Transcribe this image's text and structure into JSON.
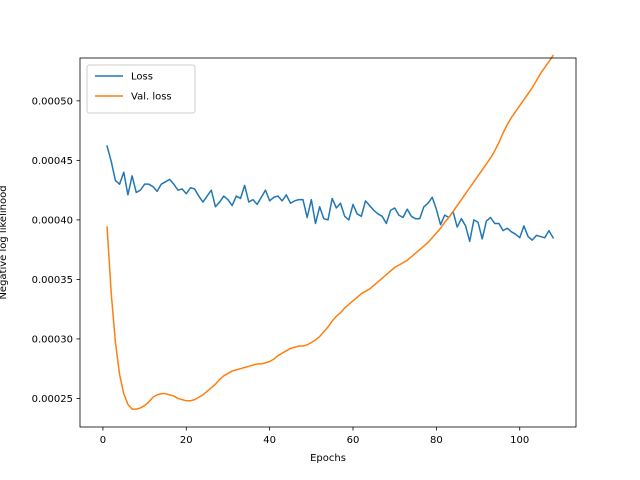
{
  "chart_data": {
    "type": "line",
    "title": "",
    "xlabel": "Epochs",
    "ylabel": "Negative log likelihood",
    "xlim": [
      -5.5,
      113.5
    ],
    "ylim": [
      0.000226,
      0.000536
    ],
    "xticks": [
      0,
      20,
      40,
      60,
      80,
      100
    ],
    "xtick_labels": [
      "0",
      "20",
      "40",
      "60",
      "80",
      "100"
    ],
    "yticks": [
      0.00025,
      0.0003,
      0.00035,
      0.0004,
      0.00045,
      0.0005
    ],
    "ytick_labels": [
      "0.00025",
      "0.00030",
      "0.00035",
      "0.00040",
      "0.00045",
      "0.00050"
    ],
    "grid": false,
    "legend_position": "top-left",
    "series": [
      {
        "name": "Loss",
        "color": "#1f77b4",
        "x": [
          1,
          2,
          3,
          4,
          5,
          6,
          7,
          8,
          9,
          10,
          11,
          12,
          13,
          14,
          15,
          16,
          17,
          18,
          19,
          20,
          21,
          22,
          23,
          24,
          25,
          26,
          27,
          28,
          29,
          30,
          31,
          32,
          33,
          34,
          35,
          36,
          37,
          38,
          39,
          40,
          41,
          42,
          43,
          44,
          45,
          46,
          47,
          48,
          49,
          50,
          51,
          52,
          53,
          54,
          55,
          56,
          57,
          58,
          59,
          60,
          61,
          62,
          63,
          64,
          65,
          66,
          67,
          68,
          69,
          70,
          71,
          72,
          73,
          74,
          75,
          76,
          77,
          78,
          79,
          80,
          81,
          82,
          83,
          84,
          85,
          86,
          87,
          88,
          89,
          90,
          91,
          92,
          93,
          94,
          95,
          96,
          97,
          98,
          99,
          100,
          101,
          102,
          103,
          104,
          105,
          106,
          107,
          108
        ],
        "values": [
          0.000462,
          0.000449,
          0.000433,
          0.00043,
          0.00044,
          0.000421,
          0.000437,
          0.000423,
          0.000425,
          0.00043,
          0.00043,
          0.000428,
          0.000424,
          0.00043,
          0.000432,
          0.000434,
          0.00043,
          0.000425,
          0.000426,
          0.000422,
          0.000427,
          0.000426,
          0.00042,
          0.000415,
          0.00042,
          0.000425,
          0.000411,
          0.000415,
          0.00042,
          0.000417,
          0.000412,
          0.00042,
          0.000418,
          0.000429,
          0.000415,
          0.000417,
          0.000413,
          0.000419,
          0.000425,
          0.000416,
          0.000419,
          0.00042,
          0.000416,
          0.000421,
          0.000414,
          0.000416,
          0.000417,
          0.000417,
          0.000402,
          0.000417,
          0.000397,
          0.000411,
          0.000401,
          0.0004,
          0.000418,
          0.00041,
          0.000414,
          0.000403,
          0.0004,
          0.000413,
          0.000405,
          0.000403,
          0.000416,
          0.000412,
          0.000408,
          0.000405,
          0.000403,
          0.000397,
          0.000408,
          0.00041,
          0.000404,
          0.000402,
          0.000409,
          0.000403,
          0.000401,
          0.000401,
          0.000411,
          0.000414,
          0.000419,
          0.000409,
          0.000396,
          0.000404,
          0.000402,
          0.000407,
          0.000394,
          0.000401,
          0.000395,
          0.000382,
          0.0004,
          0.000398,
          0.000384,
          0.000399,
          0.000402,
          0.000397,
          0.000397,
          0.000391,
          0.000393,
          0.00039,
          0.000388,
          0.000385,
          0.000395,
          0.000386,
          0.000383,
          0.000387,
          0.000386,
          0.000385,
          0.000391,
          0.000385
        ]
      },
      {
        "name": "Val. loss",
        "color": "#ff7f0e",
        "x": [
          1,
          2,
          3,
          4,
          5,
          6,
          7,
          8,
          9,
          10,
          11,
          12,
          13,
          14,
          15,
          16,
          17,
          18,
          19,
          20,
          21,
          22,
          23,
          24,
          25,
          26,
          27,
          28,
          29,
          30,
          31,
          32,
          33,
          34,
          35,
          36,
          37,
          38,
          39,
          40,
          41,
          42,
          43,
          44,
          45,
          46,
          47,
          48,
          49,
          50,
          51,
          52,
          53,
          54,
          55,
          56,
          57,
          58,
          59,
          60,
          61,
          62,
          63,
          64,
          65,
          66,
          67,
          68,
          69,
          70,
          71,
          72,
          73,
          74,
          75,
          76,
          77,
          78,
          79,
          80,
          81,
          82,
          83,
          84,
          85,
          86,
          87,
          88,
          89,
          90,
          91,
          92,
          93,
          94,
          95,
          96,
          97,
          98,
          99,
          100,
          101,
          102,
          103,
          104,
          105,
          106,
          107,
          108
        ],
        "values": [
          0.000394,
          0.000338,
          0.000297,
          0.00027,
          0.000254,
          0.000245,
          0.000241,
          0.000241,
          0.000242,
          0.000244,
          0.000247,
          0.000251,
          0.000253,
          0.000254,
          0.000254,
          0.000253,
          0.000252,
          0.00025,
          0.000249,
          0.000248,
          0.000248,
          0.000249,
          0.000251,
          0.000253,
          0.000256,
          0.000259,
          0.000262,
          0.000266,
          0.000269,
          0.000271,
          0.000273,
          0.000274,
          0.000275,
          0.000276,
          0.000277,
          0.000278,
          0.000279,
          0.000279,
          0.00028,
          0.000281,
          0.000283,
          0.000286,
          0.000288,
          0.00029,
          0.000292,
          0.000293,
          0.000294,
          0.000294,
          0.000295,
          0.000297,
          0.000299,
          0.000302,
          0.000306,
          0.00031,
          0.000315,
          0.000319,
          0.000322,
          0.000326,
          0.000329,
          0.000332,
          0.000335,
          0.000338,
          0.00034,
          0.000342,
          0.000345,
          0.000348,
          0.000351,
          0.000354,
          0.000357,
          0.00036,
          0.000362,
          0.000364,
          0.000366,
          0.000369,
          0.000372,
          0.000375,
          0.000378,
          0.000381,
          0.000385,
          0.000389,
          0.000393,
          0.000398,
          0.000402,
          0.000407,
          0.000412,
          0.000417,
          0.000422,
          0.000427,
          0.000432,
          0.000437,
          0.000442,
          0.000447,
          0.000452,
          0.000458,
          0.000465,
          0.000473,
          0.00048,
          0.000486,
          0.000491,
          0.000496,
          0.000501,
          0.000506,
          0.000511,
          0.000517,
          0.000523,
          0.000528,
          0.000533,
          0.000538
        ]
      }
    ]
  }
}
